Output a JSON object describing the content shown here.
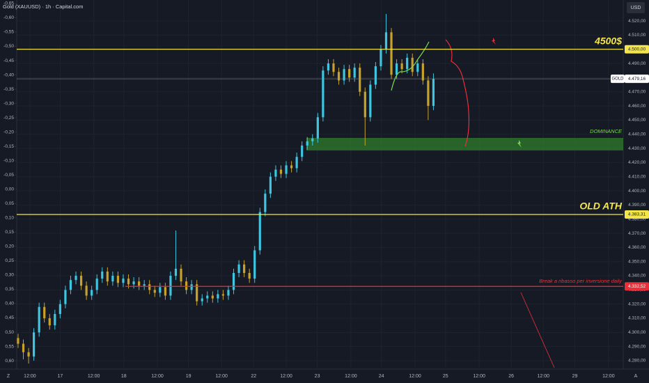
{
  "chart_data": {
    "type": "candlestick",
    "title": "Gold (XAUUSD) · 1h · Capital.com",
    "currency": "USD",
    "up_color": "#3ec6e0",
    "down_color": "#c8a228",
    "candles": [
      [
        4296,
        4299,
        4289,
        4292
      ],
      [
        4292,
        4295,
        4281,
        4286
      ],
      [
        4286,
        4289,
        4278,
        4283
      ],
      [
        4283,
        4303,
        4280,
        4300
      ],
      [
        4300,
        4321,
        4297,
        4318
      ],
      [
        4318,
        4321,
        4307,
        4310
      ],
      [
        4310,
        4313,
        4302,
        4305
      ],
      [
        4305,
        4316,
        4302,
        4313
      ],
      [
        4313,
        4323,
        4310,
        4320
      ],
      [
        4320,
        4333,
        4317,
        4330
      ],
      [
        4330,
        4340,
        4327,
        4337
      ],
      [
        4337,
        4343,
        4334,
        4340
      ],
      [
        4340,
        4343,
        4330,
        4333
      ],
      [
        4333,
        4336,
        4323,
        4326
      ],
      [
        4326,
        4333,
        4323,
        4330
      ],
      [
        4330,
        4341,
        4327,
        4338
      ],
      [
        4338,
        4346,
        4335,
        4343
      ],
      [
        4343,
        4346,
        4333,
        4336
      ],
      [
        4336,
        4343,
        4333,
        4340
      ],
      [
        4340,
        4343,
        4332,
        4335
      ],
      [
        4335,
        4341,
        4332,
        4338
      ],
      [
        4338,
        4341,
        4331,
        4334
      ],
      [
        4334,
        4339,
        4331,
        4336
      ],
      [
        4336,
        4339,
        4330,
        4333
      ],
      [
        4333,
        4337,
        4330,
        4334
      ],
      [
        4334,
        4337,
        4327,
        4330
      ],
      [
        4330,
        4333,
        4325,
        4328
      ],
      [
        4328,
        4335,
        4325,
        4332
      ],
      [
        4332,
        4335,
        4323,
        4326
      ],
      [
        4326,
        4343,
        4323,
        4340
      ],
      [
        4340,
        4372,
        4337,
        4345
      ],
      [
        4345,
        4348,
        4333,
        4336
      ],
      [
        4336,
        4339,
        4327,
        4330
      ],
      [
        4330,
        4337,
        4327,
        4334
      ],
      [
        4334,
        4337,
        4319,
        4322
      ],
      [
        4322,
        4327,
        4319,
        4324
      ],
      [
        4324,
        4329,
        4321,
        4326
      ],
      [
        4326,
        4329,
        4321,
        4324
      ],
      [
        4324,
        4330,
        4321,
        4327
      ],
      [
        4327,
        4330,
        4323,
        4326
      ],
      [
        4326,
        4333,
        4323,
        4330
      ],
      [
        4330,
        4345,
        4327,
        4342
      ],
      [
        4342,
        4351,
        4339,
        4348
      ],
      [
        4348,
        4351,
        4339,
        4342
      ],
      [
        4342,
        4345,
        4335,
        4338
      ],
      [
        4338,
        4361,
        4335,
        4358
      ],
      [
        4358,
        4388,
        4355,
        4385
      ],
      [
        4385,
        4401,
        4382,
        4398
      ],
      [
        4398,
        4413,
        4395,
        4410
      ],
      [
        4410,
        4418,
        4407,
        4415
      ],
      [
        4415,
        4418,
        4409,
        4412
      ],
      [
        4412,
        4421,
        4409,
        4418
      ],
      [
        4418,
        4421,
        4413,
        4416
      ],
      [
        4416,
        4427,
        4413,
        4424
      ],
      [
        4424,
        4435,
        4421,
        4432
      ],
      [
        4432,
        4438,
        4429,
        4435
      ],
      [
        4435,
        4440,
        4432,
        4437
      ],
      [
        4437,
        4455,
        4434,
        4452
      ],
      [
        4452,
        4488,
        4449,
        4485
      ],
      [
        4485,
        4493,
        4482,
        4490
      ],
      [
        4490,
        4493,
        4481,
        4484
      ],
      [
        4484,
        4487,
        4475,
        4478
      ],
      [
        4478,
        4489,
        4475,
        4486
      ],
      [
        4486,
        4489,
        4477,
        4480
      ],
      [
        4480,
        4490,
        4477,
        4487
      ],
      [
        4487,
        4490,
        4467,
        4470
      ],
      [
        4470,
        4473,
        4432,
        4452
      ],
      [
        4452,
        4478,
        4449,
        4475
      ],
      [
        4475,
        4491,
        4472,
        4488
      ],
      [
        4488,
        4503,
        4485,
        4500
      ],
      [
        4500,
        4525,
        4497,
        4512
      ],
      [
        4512,
        4515,
        4479,
        4482
      ],
      [
        4482,
        4493,
        4479,
        4490
      ],
      [
        4490,
        4493,
        4483,
        4486
      ],
      [
        4486,
        4497,
        4483,
        4494
      ],
      [
        4494,
        4497,
        4481,
        4484
      ],
      [
        4484,
        4493,
        4481,
        4490
      ],
      [
        4490,
        4493,
        4475,
        4478
      ],
      [
        4478,
        4481,
        4450,
        4460
      ],
      [
        4460,
        4483,
        4457,
        4479.16
      ]
    ],
    "xlim": [
      -0.26,
      115.1
    ],
    "xticks": [
      {
        "value": 2.25,
        "label": "12:00"
      },
      {
        "value": 8.0,
        "label": "17"
      },
      {
        "value": 14.4,
        "label": "12:00"
      },
      {
        "value": 20.1,
        "label": "18"
      },
      {
        "value": 26.5,
        "label": "12:00"
      },
      {
        "value": 32.4,
        "label": "19"
      },
      {
        "value": 38.7,
        "label": "12:00"
      },
      {
        "value": 44.8,
        "label": "22"
      },
      {
        "value": 51.0,
        "label": "12:00"
      },
      {
        "value": 56.9,
        "label": "23"
      },
      {
        "value": 63.3,
        "label": "12:00"
      },
      {
        "value": 69.1,
        "label": "24"
      },
      {
        "value": 75.5,
        "label": "12:00"
      },
      {
        "value": 81.3,
        "label": "25"
      },
      {
        "value": 87.7,
        "label": "12:00"
      },
      {
        "value": 93.8,
        "label": "26"
      },
      {
        "value": 99.9,
        "label": "12:00"
      },
      {
        "value": 105.9,
        "label": "29"
      },
      {
        "value": 112.3,
        "label": "12:00"
      }
    ],
    "ylim": [
      4274.1,
      4534.8
    ],
    "yticks": [
      {
        "value": 4280,
        "label": "4.280,00"
      },
      {
        "value": 4290,
        "label": "4.290,00"
      },
      {
        "value": 4300,
        "label": "4.300,00"
      },
      {
        "value": 4310,
        "label": "4.310,00"
      },
      {
        "value": 4320,
        "label": "4.320,00"
      },
      {
        "value": 4330,
        "label": "4.330,00"
      },
      {
        "value": 4340,
        "label": "4.340,00"
      },
      {
        "value": 4350,
        "label": "4.350,00"
      },
      {
        "value": 4360,
        "label": "4.360,00"
      },
      {
        "value": 4370,
        "label": "4.370,00"
      },
      {
        "value": 4380,
        "label": "4.380,00"
      },
      {
        "value": 4390,
        "label": "4.390,00"
      },
      {
        "value": 4400,
        "label": "4.400,00"
      },
      {
        "value": 4410,
        "label": "4.410,00"
      },
      {
        "value": 4420,
        "label": "4.420,00"
      },
      {
        "value": 4430,
        "label": "4.430,00"
      },
      {
        "value": 4440,
        "label": "4.440,00"
      },
      {
        "value": 4450,
        "label": "4.450,00"
      },
      {
        "value": 4460,
        "label": "4.460,00"
      },
      {
        "value": 4470,
        "label": "4.470,00"
      },
      {
        "value": 4480,
        "label": "4.480,00"
      },
      {
        "value": 4490,
        "label": "4.490,00"
      },
      {
        "value": 4500,
        "label": "4.500,00"
      },
      {
        "value": 4510,
        "label": "4.510,00"
      },
      {
        "value": 4520,
        "label": "4.520,00"
      }
    ],
    "y2lim": [
      -0.662,
      0.629
    ],
    "y2_inverted": true,
    "y2ticks": [
      {
        "value": -0.65,
        "label": "-0,65"
      },
      {
        "value": -0.6,
        "label": "-0,60"
      },
      {
        "value": -0.55,
        "label": "-0,55"
      },
      {
        "value": -0.5,
        "label": "-0,50"
      },
      {
        "value": -0.45,
        "label": "-0,45"
      },
      {
        "value": -0.4,
        "label": "-0,40"
      },
      {
        "value": -0.35,
        "label": "-0,35"
      },
      {
        "value": -0.3,
        "label": "-0,30"
      },
      {
        "value": -0.25,
        "label": "-0,25"
      },
      {
        "value": -0.2,
        "label": "-0,20"
      },
      {
        "value": -0.15,
        "label": "-0,15"
      },
      {
        "value": -0.1,
        "label": "-0,10"
      },
      {
        "value": -0.05,
        "label": "-0,05"
      },
      {
        "value": 0,
        "label": "0,00"
      },
      {
        "value": 0.05,
        "label": "0,05"
      },
      {
        "value": 0.1,
        "label": "0,10"
      },
      {
        "value": 0.15,
        "label": "0,15"
      },
      {
        "value": 0.2,
        "label": "0,20"
      },
      {
        "value": 0.25,
        "label": "0,25"
      },
      {
        "value": 0.3,
        "label": "0,30"
      },
      {
        "value": 0.35,
        "label": "0,35"
      },
      {
        "value": 0.4,
        "label": "0,40"
      },
      {
        "value": 0.45,
        "label": "0,45"
      },
      {
        "value": 0.5,
        "label": "0,50"
      },
      {
        "value": 0.55,
        "label": "0,55"
      },
      {
        "value": 0.6,
        "label": "0,60"
      }
    ],
    "hlines": [
      {
        "value": 4500,
        "label": "4500$",
        "tag": "4.500,00",
        "color": "#f2e64a"
      },
      {
        "value": 4383.31,
        "label": "OLD ATH",
        "tag": "4.383,31",
        "color": "#f2e64a"
      },
      {
        "value": 4332.52,
        "label": "Break a ribasso per inversione daily",
        "tag": "4.332,52",
        "color": "#e8303a"
      }
    ],
    "last_price": {
      "value": 4479.16,
      "name": "GOLD",
      "tag": "4.479,16"
    },
    "zone": {
      "label": "DOMINANCE",
      "top": 4437.4,
      "bottom": 4428.5,
      "color": "#2f7d2c"
    },
    "corner_buttons": [
      "Z",
      "A"
    ]
  }
}
